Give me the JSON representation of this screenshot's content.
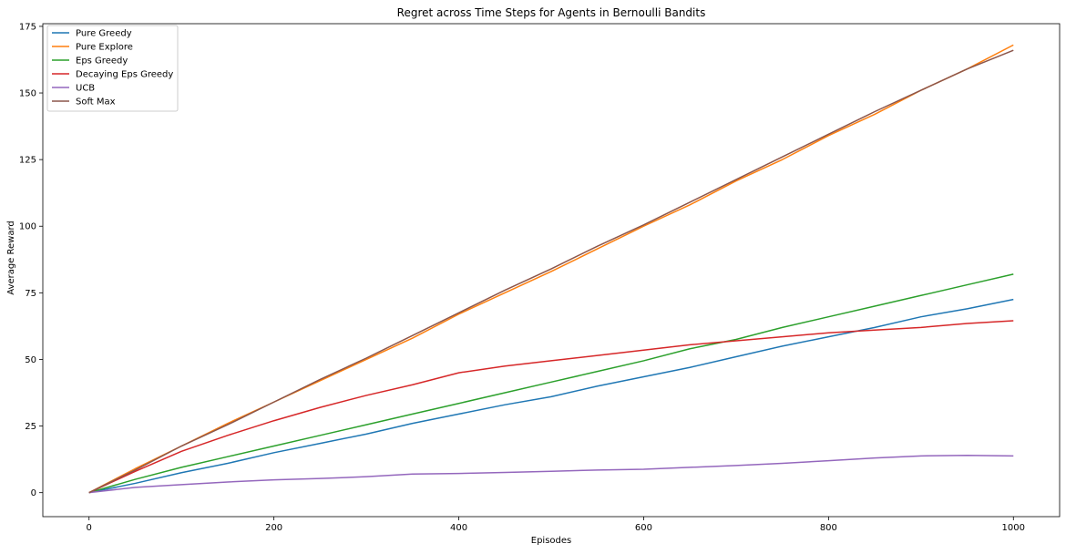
{
  "chart_data": {
    "type": "line",
    "title": "Regret across Time Steps for Agents in Bernoulli Bandits",
    "xlabel": "Episodes",
    "ylabel": "Average Reward",
    "xlim": [
      -50,
      1050
    ],
    "ylim": [
      -9,
      176
    ],
    "xticks": [
      0,
      200,
      400,
      600,
      800,
      1000
    ],
    "yticks": [
      0,
      25,
      50,
      75,
      100,
      125,
      150,
      175
    ],
    "grid": false,
    "legend": "top-left",
    "series": [
      {
        "name": "Pure Greedy",
        "color": "#1f77b4",
        "x": [
          0,
          50,
          100,
          150,
          200,
          250,
          300,
          350,
          400,
          450,
          500,
          550,
          600,
          650,
          700,
          750,
          800,
          850,
          900,
          950,
          1000
        ],
        "y": [
          0,
          3.5,
          7.5,
          11,
          15,
          18.5,
          22,
          26,
          29.5,
          33,
          36,
          40,
          43.5,
          47,
          51,
          55,
          58.5,
          62,
          66,
          69,
          72.5
        ]
      },
      {
        "name": "Pure Explore",
        "color": "#ff7f0e",
        "x": [
          0,
          50,
          100,
          150,
          200,
          250,
          300,
          350,
          400,
          450,
          500,
          550,
          600,
          650,
          700,
          750,
          800,
          850,
          900,
          950,
          1000
        ],
        "y": [
          0,
          9,
          17.5,
          26,
          34,
          42,
          50,
          58,
          67,
          75,
          83,
          91.5,
          100,
          108,
          117,
          125,
          134,
          142,
          151,
          159,
          168
        ]
      },
      {
        "name": "Eps Greedy",
        "color": "#2ca02c",
        "x": [
          0,
          50,
          100,
          150,
          200,
          250,
          300,
          350,
          400,
          450,
          500,
          550,
          600,
          650,
          700,
          750,
          800,
          850,
          900,
          950,
          1000
        ],
        "y": [
          0,
          5,
          9.5,
          13.5,
          17.5,
          21.5,
          25.5,
          29.5,
          33.5,
          37.5,
          41.5,
          45.5,
          49.5,
          54,
          57.5,
          62,
          66,
          70,
          74,
          78,
          82
        ]
      },
      {
        "name": "Decaying Eps Greedy",
        "color": "#d62728",
        "x": [
          0,
          50,
          100,
          150,
          200,
          250,
          300,
          350,
          400,
          450,
          500,
          550,
          600,
          650,
          700,
          750,
          800,
          850,
          900,
          950,
          1000
        ],
        "y": [
          0,
          8,
          15.5,
          21.5,
          27,
          32,
          36.5,
          40.5,
          45,
          47.5,
          49.5,
          51.5,
          53.5,
          55.5,
          57,
          58.5,
          60,
          61,
          62,
          63.5,
          64.5
        ]
      },
      {
        "name": "UCB",
        "color": "#9467bd",
        "x": [
          0,
          50,
          100,
          150,
          200,
          250,
          300,
          350,
          400,
          450,
          500,
          550,
          600,
          650,
          700,
          750,
          800,
          850,
          900,
          950,
          1000
        ],
        "y": [
          0,
          2,
          3,
          4,
          4.8,
          5.3,
          6,
          7,
          7.2,
          7.6,
          8,
          8.5,
          8.8,
          9.5,
          10.2,
          11,
          12,
          13,
          13.8,
          14,
          13.8
        ]
      },
      {
        "name": "Soft Max",
        "color": "#8c564b",
        "x": [
          0,
          50,
          100,
          150,
          200,
          250,
          300,
          350,
          400,
          450,
          500,
          550,
          600,
          650,
          700,
          750,
          800,
          850,
          900,
          950,
          1000
        ],
        "y": [
          0,
          8.5,
          17.5,
          25.5,
          34,
          42.5,
          50.5,
          59,
          67.5,
          76,
          84,
          92.5,
          100.5,
          109,
          117.5,
          126,
          134.5,
          143,
          151,
          159,
          166
        ]
      }
    ]
  }
}
